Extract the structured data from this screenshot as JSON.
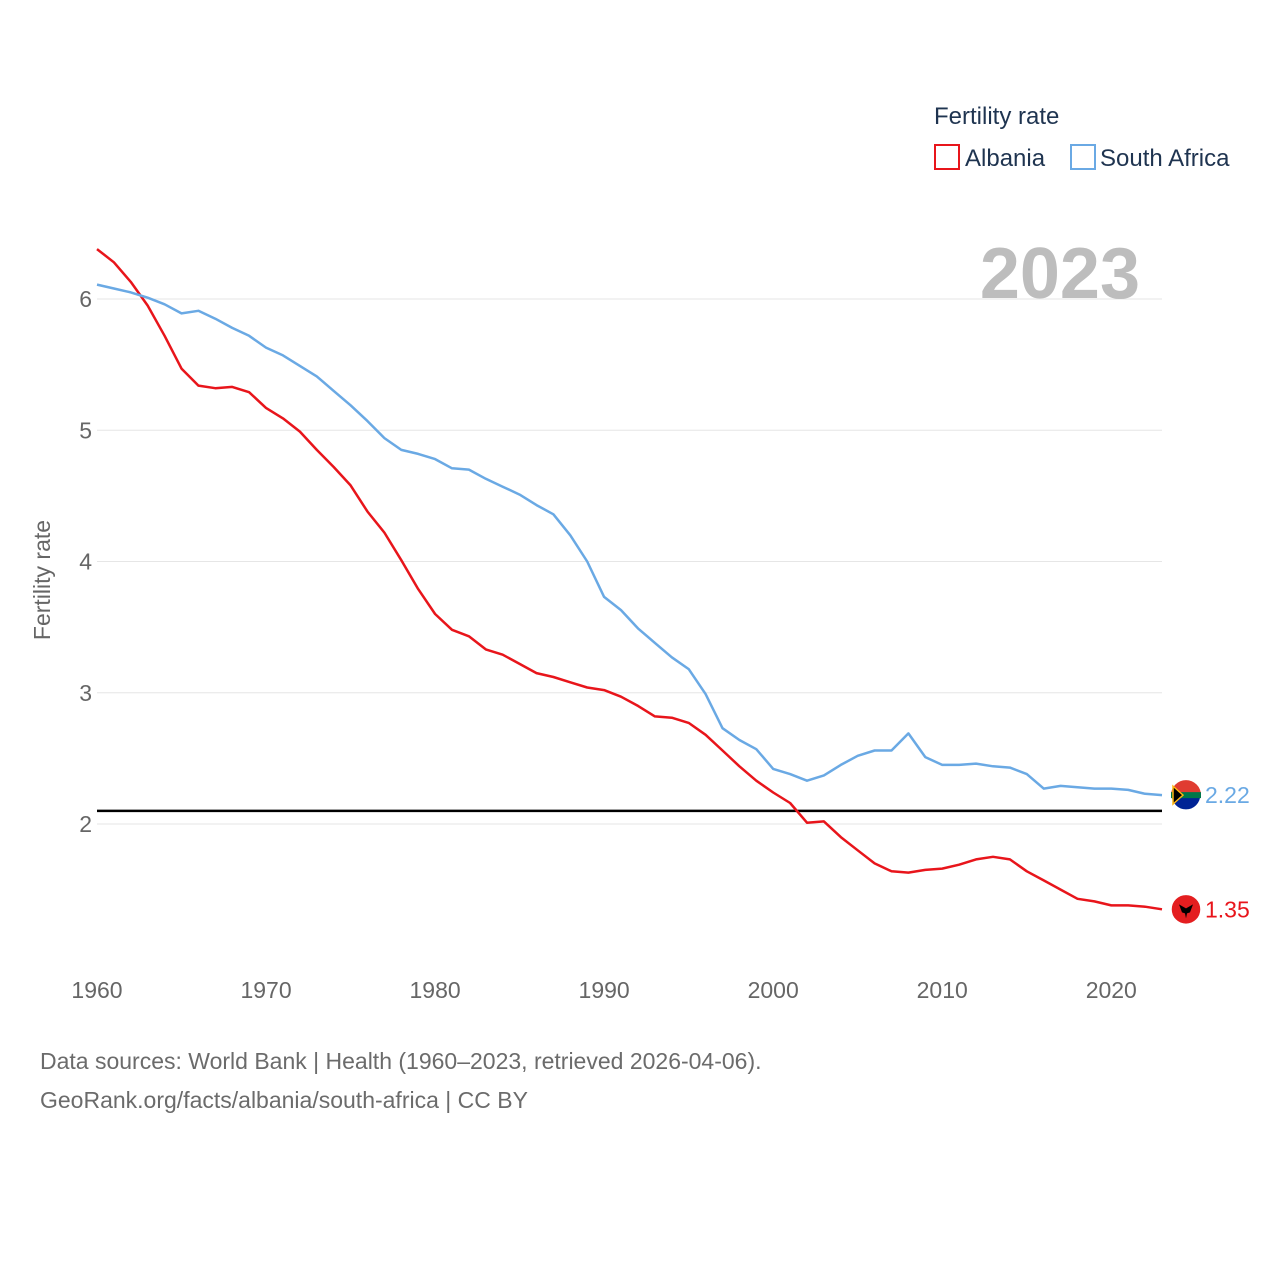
{
  "chart_data": {
    "type": "line",
    "title": "Fertility rate",
    "ylabel": "Fertility rate",
    "xlabel": "",
    "xlim": [
      1960,
      2023
    ],
    "ylim": [
      1,
      6.6
    ],
    "year_label": "2023",
    "yticks": [
      2,
      3,
      4,
      5,
      6
    ],
    "xticks": [
      1960,
      1970,
      1980,
      1990,
      2000,
      2010,
      2020
    ],
    "reference_line": 2.1,
    "legend": {
      "title": "Fertility rate",
      "position": "top-right"
    },
    "series": [
      {
        "name": "Albania",
        "color": "#e8151b",
        "end_label": "1.35",
        "flag_icon": "albania-flag-icon",
        "x": [
          1960,
          1961,
          1962,
          1963,
          1964,
          1965,
          1966,
          1967,
          1968,
          1969,
          1970,
          1971,
          1972,
          1973,
          1974,
          1975,
          1976,
          1977,
          1978,
          1979,
          1980,
          1981,
          1982,
          1983,
          1984,
          1985,
          1986,
          1987,
          1988,
          1989,
          1990,
          1991,
          1992,
          1993,
          1994,
          1995,
          1996,
          1997,
          1998,
          1999,
          2000,
          2001,
          2002,
          2003,
          2004,
          2005,
          2006,
          2007,
          2008,
          2009,
          2010,
          2011,
          2012,
          2013,
          2014,
          2015,
          2016,
          2017,
          2018,
          2019,
          2020,
          2021,
          2022,
          2023
        ],
        "values": [
          6.38,
          6.28,
          6.13,
          5.95,
          5.72,
          5.47,
          5.34,
          5.32,
          5.33,
          5.29,
          5.17,
          5.09,
          4.99,
          4.85,
          4.72,
          4.58,
          4.38,
          4.22,
          4.01,
          3.79,
          3.6,
          3.48,
          3.43,
          3.33,
          3.29,
          3.22,
          3.15,
          3.12,
          3.08,
          3.04,
          3.02,
          2.97,
          2.9,
          2.82,
          2.81,
          2.77,
          2.68,
          2.56,
          2.44,
          2.33,
          2.24,
          2.16,
          2.01,
          2.02,
          1.9,
          1.8,
          1.7,
          1.64,
          1.63,
          1.65,
          1.66,
          1.69,
          1.73,
          1.75,
          1.73,
          1.64,
          1.57,
          1.5,
          1.43,
          1.41,
          1.38,
          1.38,
          1.37,
          1.35
        ]
      },
      {
        "name": "South Africa",
        "color": "#6aa9e4",
        "end_label": "2.22",
        "flag_icon": "south-africa-flag-icon",
        "x": [
          1960,
          1961,
          1962,
          1963,
          1964,
          1965,
          1966,
          1967,
          1968,
          1969,
          1970,
          1971,
          1972,
          1973,
          1974,
          1975,
          1976,
          1977,
          1978,
          1979,
          1980,
          1981,
          1982,
          1983,
          1984,
          1985,
          1986,
          1987,
          1988,
          1989,
          1990,
          1991,
          1992,
          1993,
          1994,
          1995,
          1996,
          1997,
          1998,
          1999,
          2000,
          2001,
          2002,
          2003,
          2004,
          2005,
          2006,
          2007,
          2008,
          2009,
          2010,
          2011,
          2012,
          2013,
          2014,
          2015,
          2016,
          2017,
          2018,
          2019,
          2020,
          2021,
          2022,
          2023
        ],
        "values": [
          6.11,
          6.08,
          6.05,
          6.01,
          5.96,
          5.89,
          5.91,
          5.85,
          5.78,
          5.72,
          5.63,
          5.57,
          5.49,
          5.41,
          5.3,
          5.19,
          5.07,
          4.94,
          4.85,
          4.82,
          4.78,
          4.71,
          4.7,
          4.63,
          4.57,
          4.51,
          4.43,
          4.36,
          4.2,
          4.0,
          3.73,
          3.63,
          3.49,
          3.38,
          3.27,
          3.18,
          2.99,
          2.73,
          2.64,
          2.57,
          2.42,
          2.38,
          2.33,
          2.37,
          2.45,
          2.52,
          2.56,
          2.56,
          2.69,
          2.51,
          2.45,
          2.45,
          2.46,
          2.44,
          2.43,
          2.38,
          2.27,
          2.29,
          2.28,
          2.27,
          2.27,
          2.26,
          2.23,
          2.22
        ]
      }
    ]
  },
  "footer": {
    "source_line": "Data sources: World Bank | Health (1960–2023, retrieved 2026-04-06).",
    "credit_line": "GeoRank.org/facts/albania/south-africa | CC BY"
  }
}
